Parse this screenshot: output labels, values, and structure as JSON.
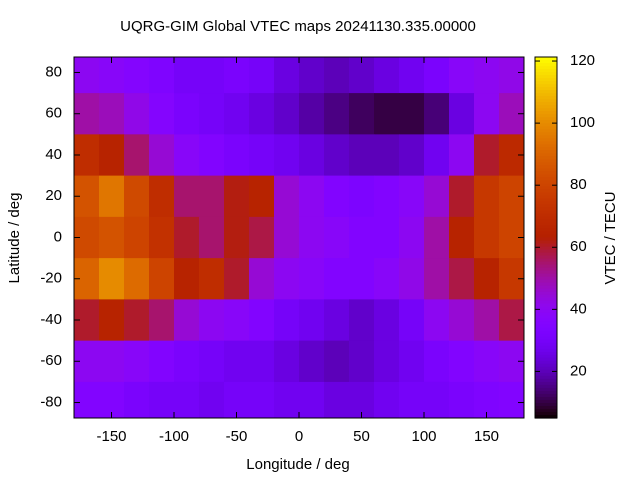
{
  "chart_data": {
    "type": "heatmap",
    "title": "UQRG-GIM Global VTEC maps 20241130.335.00000",
    "x_label": "Longitude / deg",
    "y_label": "Latitude / deg",
    "colorbar_label": "VTEC / TECU",
    "colormap": "gnuplot",
    "x": [
      -170,
      -150,
      -130,
      -110,
      -90,
      -70,
      -50,
      -30,
      -10,
      10,
      30,
      50,
      70,
      90,
      110,
      130,
      150,
      170
    ],
    "y": [
      80,
      60,
      40,
      20,
      0,
      -20,
      -40,
      -60,
      -80
    ],
    "values": [
      [
        40,
        38,
        36,
        34,
        30,
        30,
        32,
        30,
        25,
        22,
        20,
        22,
        25,
        28,
        32,
        38,
        40,
        42
      ],
      [
        50,
        48,
        42,
        36,
        32,
        30,
        28,
        25,
        22,
        18,
        15,
        12,
        10,
        10,
        14,
        25,
        40,
        48
      ],
      [
        70,
        65,
        55,
        45,
        38,
        35,
        32,
        30,
        28,
        25,
        22,
        20,
        20,
        22,
        28,
        40,
        60,
        68
      ],
      [
        85,
        95,
        82,
        70,
        55,
        55,
        62,
        65,
        45,
        40,
        35,
        33,
        35,
        38,
        45,
        60,
        75,
        80
      ],
      [
        82,
        85,
        80,
        72,
        60,
        55,
        62,
        58,
        45,
        40,
        38,
        35,
        35,
        40,
        50,
        65,
        75,
        80
      ],
      [
        90,
        100,
        92,
        80,
        65,
        70,
        60,
        45,
        40,
        38,
        35,
        35,
        38,
        42,
        50,
        58,
        65,
        75
      ],
      [
        60,
        65,
        60,
        55,
        45,
        40,
        38,
        35,
        30,
        28,
        25,
        22,
        25,
        30,
        40,
        45,
        50,
        58
      ],
      [
        40,
        40,
        38,
        35,
        32,
        30,
        28,
        28,
        25,
        22,
        20,
        22,
        25,
        28,
        32,
        35,
        38,
        40
      ],
      [
        35,
        35,
        32,
        30,
        30,
        28,
        30,
        30,
        28,
        28,
        25,
        25,
        28,
        30,
        30,
        32,
        34,
        35
      ]
    ],
    "xlim": [
      -180,
      180
    ],
    "ylim": [
      -87.5,
      87.5
    ],
    "xticks": [
      -150,
      -100,
      -50,
      0,
      50,
      100,
      150
    ],
    "yticks": [
      -80,
      -60,
      -40,
      -20,
      0,
      20,
      40,
      60,
      80
    ],
    "cblim": [
      5,
      121.3
    ],
    "cbticks": [
      20,
      40,
      60,
      80,
      100,
      120
    ]
  }
}
